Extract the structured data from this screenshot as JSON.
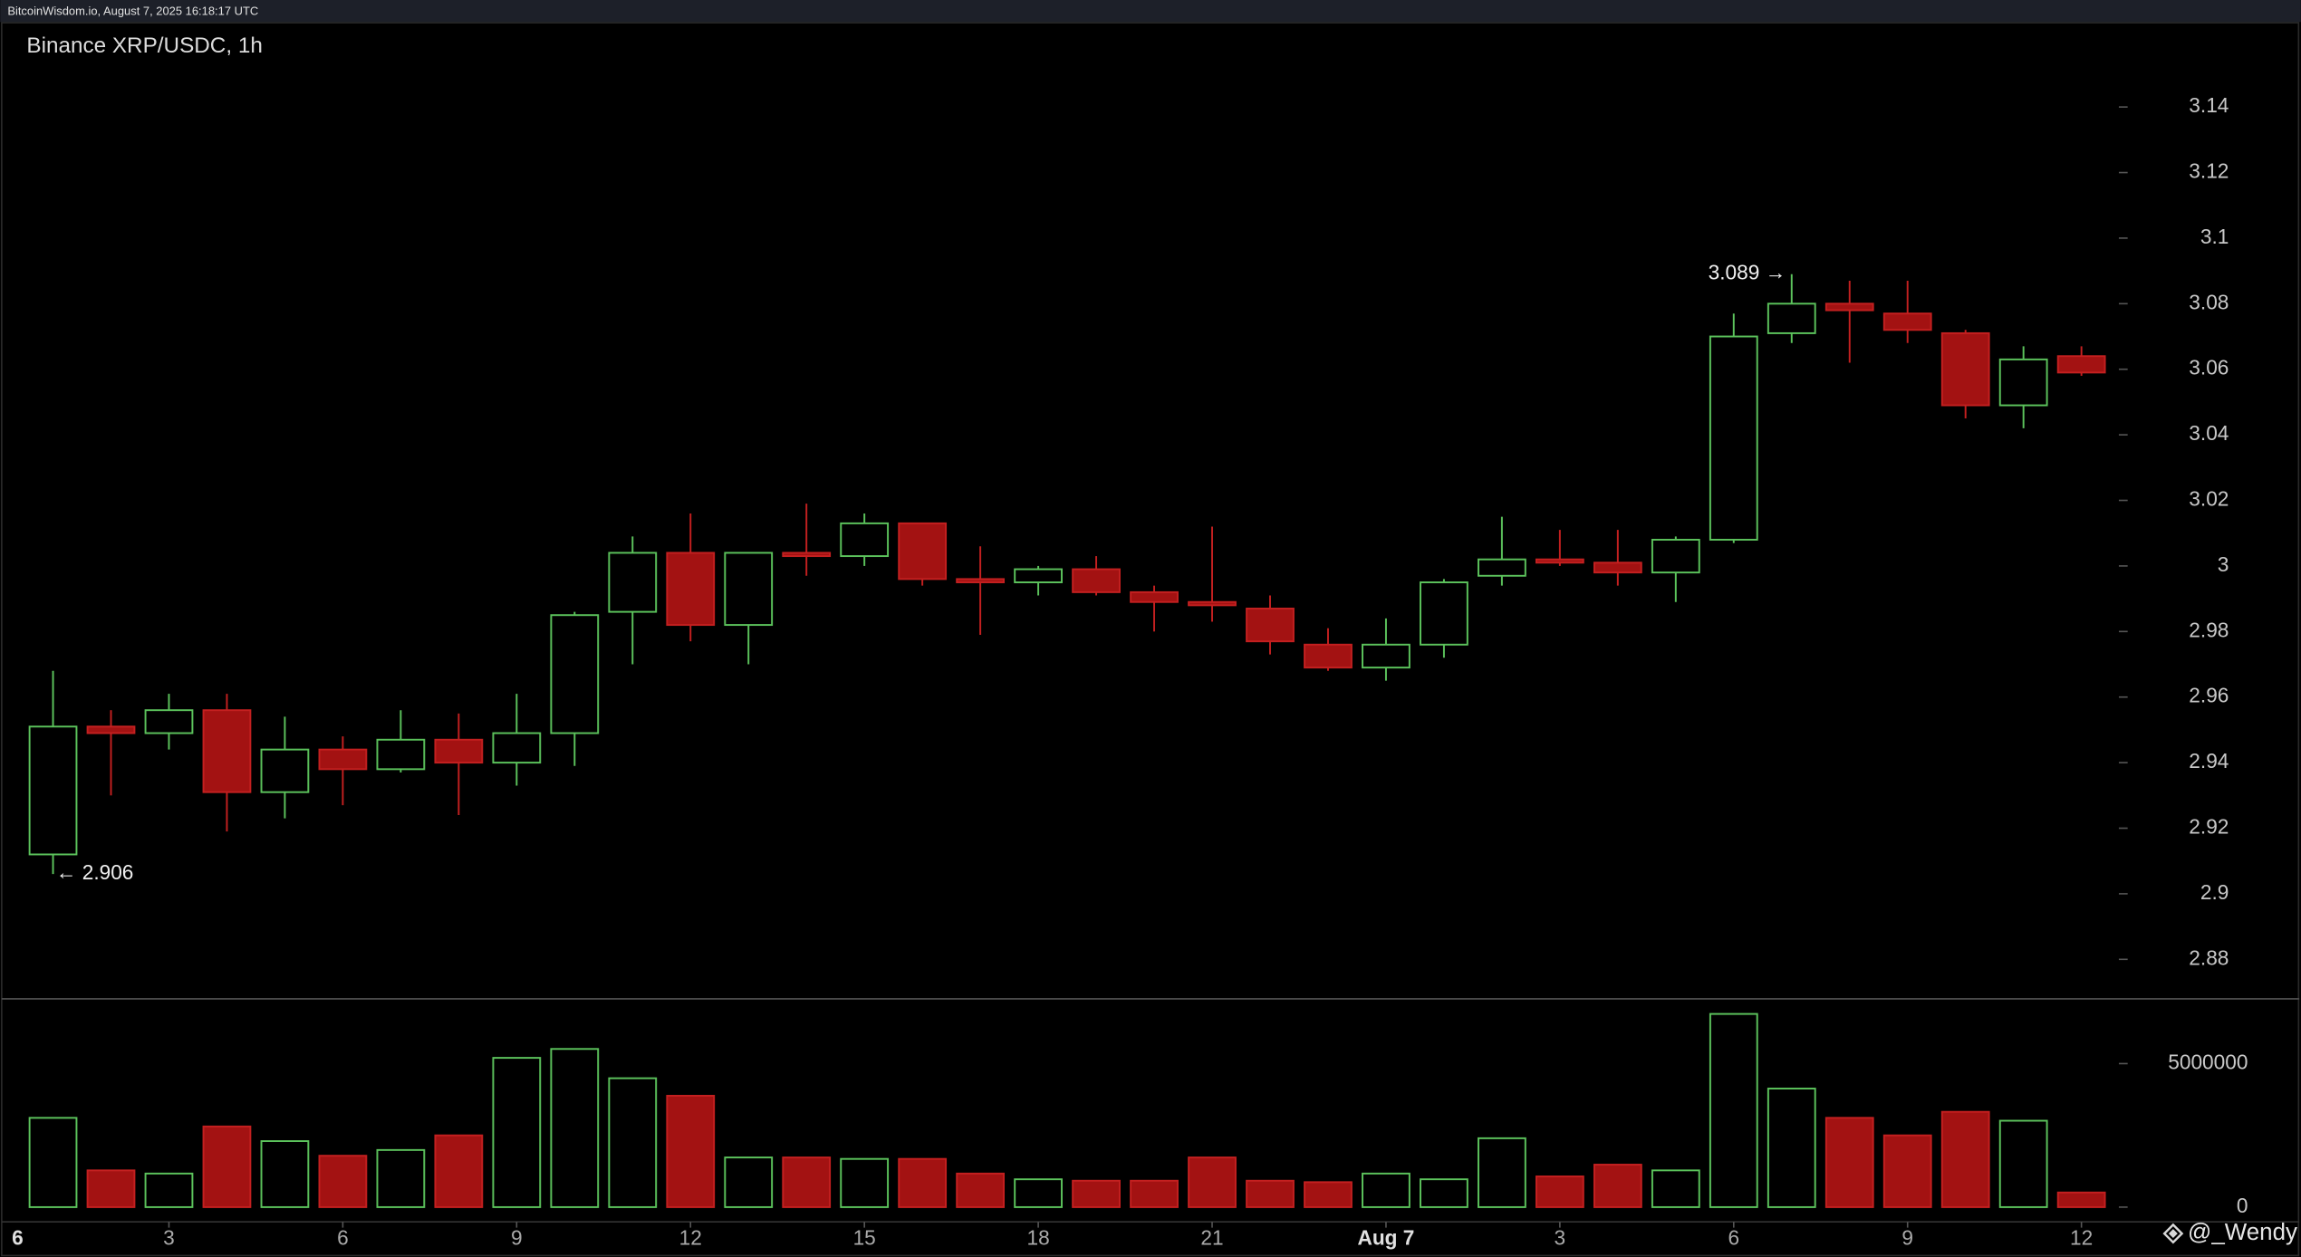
{
  "header": "BitcoinWisdom.io, August 7, 2025 16:18:17 UTC",
  "watermark": "@_Wendy",
  "chart_data": {
    "type": "candlestick",
    "title": "Binance XRP/USDC, 1h",
    "x": [
      1,
      2,
      3,
      4,
      5,
      6,
      7,
      8,
      9,
      10,
      11,
      12,
      13,
      14,
      15,
      16,
      17,
      18,
      19,
      20,
      21,
      22,
      23,
      24,
      25,
      26,
      27,
      28,
      29,
      30,
      31,
      32,
      33,
      34,
      35,
      36
    ],
    "open": [
      2.912,
      2.951,
      2.949,
      2.956,
      2.931,
      2.944,
      2.938,
      2.947,
      2.94,
      2.949,
      2.986,
      3.004,
      2.982,
      3.004,
      3.003,
      3.013,
      2.996,
      2.995,
      2.999,
      2.992,
      2.989,
      2.987,
      2.976,
      2.969,
      2.976,
      2.997,
      3.002,
      3.001,
      2.998,
      3.008,
      3.071,
      3.08,
      3.077,
      3.071,
      3.049,
      3.064
    ],
    "high": [
      2.968,
      2.956,
      2.961,
      2.961,
      2.954,
      2.948,
      2.956,
      2.955,
      2.961,
      2.986,
      3.009,
      3.016,
      3.004,
      3.019,
      3.016,
      3.013,
      3.006,
      3.0,
      3.003,
      2.994,
      3.012,
      2.991,
      2.981,
      2.984,
      2.996,
      3.015,
      3.011,
      3.011,
      3.009,
      3.077,
      3.089,
      3.087,
      3.087,
      3.072,
      3.067,
      3.067
    ],
    "low": [
      2.906,
      2.93,
      2.944,
      2.919,
      2.923,
      2.927,
      2.937,
      2.924,
      2.933,
      2.939,
      2.97,
      2.977,
      2.97,
      2.997,
      3.0,
      2.994,
      2.979,
      2.991,
      2.991,
      2.98,
      2.983,
      2.973,
      2.968,
      2.965,
      2.972,
      2.994,
      3.0,
      2.994,
      2.989,
      3.007,
      3.068,
      3.062,
      3.068,
      3.045,
      3.042,
      3.058
    ],
    "close": [
      2.951,
      2.949,
      2.956,
      2.931,
      2.944,
      2.938,
      2.947,
      2.94,
      2.949,
      2.985,
      3.004,
      2.982,
      3.004,
      3.003,
      3.013,
      2.996,
      2.995,
      2.999,
      2.992,
      2.989,
      2.988,
      2.977,
      2.969,
      2.976,
      2.995,
      3.002,
      3.001,
      2.998,
      3.008,
      3.07,
      3.08,
      3.078,
      3.072,
      3.049,
      3.063,
      3.059
    ],
    "volume": [
      3110000,
      1280000,
      1170000,
      2810000,
      2300000,
      1790000,
      1990000,
      2500000,
      5200000,
      5510000,
      4490000,
      3880000,
      1730000,
      1730000,
      1680000,
      1680000,
      1170000,
      970000,
      920000,
      920000,
      1730000,
      920000,
      870000,
      1170000,
      970000,
      2400000,
      1070000,
      1480000,
      1280000,
      6730000,
      4130000,
      3110000,
      2500000,
      3320000,
      3010000,
      510000
    ],
    "up_color": "#5cc35c",
    "down_color": "#a31212",
    "xlim": [
      0,
      37
    ],
    "xticks": [
      {
        "value": 0,
        "label": "6"
      },
      3,
      6,
      9,
      12,
      15,
      18,
      21,
      {
        "value": 24,
        "label": "Aug 7"
      },
      {
        "value": 27,
        "label": "3"
      },
      {
        "value": 30,
        "label": "6"
      },
      {
        "value": 33,
        "label": "9"
      },
      {
        "value": 36,
        "label": "12"
      }
    ],
    "ylim": [
      2.87,
      3.15
    ],
    "yticks": [
      2.88,
      2.9,
      2.92,
      2.94,
      2.96,
      2.98,
      3,
      3.02,
      3.04,
      3.06,
      3.08,
      3.1,
      3.12,
      3.14
    ],
    "volume_ylim": [
      0,
      7000000
    ],
    "volume_yticks": [
      0,
      5000000
    ],
    "annotations": [
      {
        "label": "3.089 →",
        "value": 3.089
      },
      {
        "label": "← 2.906",
        "value": 2.906
      }
    ]
  }
}
